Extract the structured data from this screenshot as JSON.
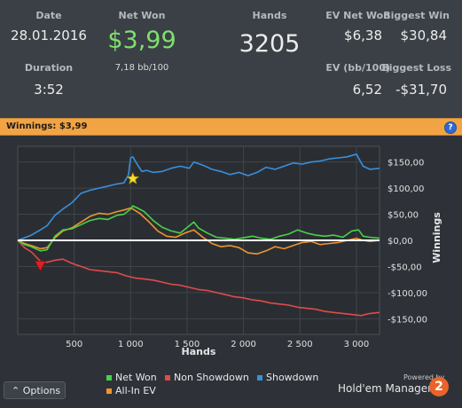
{
  "stats": {
    "date_label": "Date",
    "date_value": "28.01.2016",
    "duration_label": "Duration",
    "duration_value": "3:52",
    "net_won_label": "Net Won",
    "net_won_value": "$3,99",
    "bb100_value": "7,18 bb/100",
    "hands_label": "Hands",
    "hands_value": "3205",
    "ev_net_won_label": "EV Net Won",
    "ev_net_won_value": "$6,38",
    "biggest_win_label": "Biggest Win",
    "biggest_win_value": "$30,84",
    "ev_bb100_label": "EV (bb/100)",
    "ev_bb100_value": "6,52",
    "biggest_loss_label": "Biggest Loss",
    "biggest_loss_value": "-$31,70"
  },
  "winnings_bar": {
    "text": "Winnings: $3,99",
    "help_glyph": "?"
  },
  "options_label": "⌃ Options",
  "footer": {
    "powered_by": "Powered by",
    "brand": "Hold'em Manager",
    "logo_glyph": "2"
  },
  "colors": {
    "net_won": "#49d148",
    "non_showdown": "#e14a4a",
    "showdown": "#3a8fdb",
    "all_in_ev": "#f0952e",
    "zero_line": "#ffffff",
    "grid": "#3f454c"
  },
  "icons": {
    "help": "help-icon",
    "options_chevron": "chevron-up-icon",
    "logo": "holdem-manager-logo-icon",
    "best_marker": "star-icon",
    "worst_marker": "down-triangle-icon"
  },
  "chart_data": {
    "type": "line",
    "xlabel": "Hands",
    "ylabel": "Winnings",
    "xlim": [
      0,
      3205
    ],
    "ylim": [
      -180,
      180
    ],
    "x_ticks": [
      500,
      1000,
      1500,
      2000,
      2500,
      3000
    ],
    "x_tick_labels": [
      "500",
      "1 000",
      "1 500",
      "2 000",
      "2 500",
      "3 000"
    ],
    "y_ticks": [
      150,
      100,
      50,
      0,
      -50,
      -100,
      -150
    ],
    "y_tick_labels": [
      "$150,00",
      "$100,00",
      "$50,00",
      "$0,00",
      "-$50,00",
      "-$100,00",
      "-$150,00"
    ],
    "legend": [
      "Net Won",
      "Non Showdown",
      "Showdown",
      "All-In EV"
    ],
    "legend_position": "bottom",
    "max_marker": {
      "x": 1020,
      "y": 118
    },
    "min_marker": {
      "x": 200,
      "y": -50
    },
    "series": [
      {
        "name": "Net Won",
        "color": "#49d148",
        "points": [
          [
            0,
            0
          ],
          [
            60,
            -8
          ],
          [
            120,
            -12
          ],
          [
            200,
            -20
          ],
          [
            260,
            -18
          ],
          [
            330,
            8
          ],
          [
            400,
            20
          ],
          [
            480,
            22
          ],
          [
            560,
            30
          ],
          [
            640,
            38
          ],
          [
            720,
            42
          ],
          [
            800,
            40
          ],
          [
            880,
            48
          ],
          [
            940,
            50
          ],
          [
            1000,
            60
          ],
          [
            1020,
            66
          ],
          [
            1060,
            62
          ],
          [
            1120,
            55
          ],
          [
            1200,
            38
          ],
          [
            1280,
            25
          ],
          [
            1360,
            18
          ],
          [
            1440,
            14
          ],
          [
            1520,
            28
          ],
          [
            1560,
            35
          ],
          [
            1600,
            24
          ],
          [
            1680,
            14
          ],
          [
            1760,
            6
          ],
          [
            1840,
            4
          ],
          [
            1920,
            2
          ],
          [
            2000,
            5
          ],
          [
            2080,
            8
          ],
          [
            2160,
            4
          ],
          [
            2240,
            2
          ],
          [
            2320,
            8
          ],
          [
            2400,
            12
          ],
          [
            2480,
            20
          ],
          [
            2560,
            14
          ],
          [
            2640,
            10
          ],
          [
            2720,
            8
          ],
          [
            2800,
            10
          ],
          [
            2880,
            6
          ],
          [
            2960,
            18
          ],
          [
            3020,
            20
          ],
          [
            3060,
            8
          ],
          [
            3120,
            6
          ],
          [
            3205,
            4
          ]
        ]
      },
      {
        "name": "Non Showdown",
        "color": "#e14a4a",
        "points": [
          [
            0,
            0
          ],
          [
            60,
            -14
          ],
          [
            120,
            -22
          ],
          [
            200,
            -40
          ],
          [
            260,
            -42
          ],
          [
            330,
            -38
          ],
          [
            400,
            -36
          ],
          [
            480,
            -44
          ],
          [
            560,
            -50
          ],
          [
            640,
            -56
          ],
          [
            720,
            -58
          ],
          [
            800,
            -60
          ],
          [
            880,
            -62
          ],
          [
            960,
            -68
          ],
          [
            1040,
            -72
          ],
          [
            1120,
            -74
          ],
          [
            1200,
            -76
          ],
          [
            1280,
            -80
          ],
          [
            1360,
            -84
          ],
          [
            1440,
            -86
          ],
          [
            1520,
            -90
          ],
          [
            1600,
            -94
          ],
          [
            1680,
            -96
          ],
          [
            1760,
            -100
          ],
          [
            1840,
            -104
          ],
          [
            1920,
            -108
          ],
          [
            2000,
            -110
          ],
          [
            2080,
            -114
          ],
          [
            2160,
            -116
          ],
          [
            2240,
            -120
          ],
          [
            2320,
            -122
          ],
          [
            2400,
            -124
          ],
          [
            2480,
            -128
          ],
          [
            2560,
            -130
          ],
          [
            2640,
            -132
          ],
          [
            2720,
            -136
          ],
          [
            2800,
            -138
          ],
          [
            2880,
            -140
          ],
          [
            2960,
            -142
          ],
          [
            3040,
            -144
          ],
          [
            3120,
            -140
          ],
          [
            3205,
            -138
          ]
        ]
      },
      {
        "name": "Showdown",
        "color": "#3a8fdb",
        "points": [
          [
            0,
            0
          ],
          [
            60,
            5
          ],
          [
            120,
            10
          ],
          [
            200,
            20
          ],
          [
            260,
            28
          ],
          [
            330,
            48
          ],
          [
            400,
            60
          ],
          [
            480,
            72
          ],
          [
            560,
            90
          ],
          [
            640,
            96
          ],
          [
            720,
            100
          ],
          [
            800,
            104
          ],
          [
            880,
            108
          ],
          [
            940,
            110
          ],
          [
            980,
            125
          ],
          [
            1000,
            158
          ],
          [
            1020,
            160
          ],
          [
            1060,
            145
          ],
          [
            1100,
            132
          ],
          [
            1140,
            134
          ],
          [
            1200,
            130
          ],
          [
            1280,
            132
          ],
          [
            1360,
            138
          ],
          [
            1440,
            142
          ],
          [
            1520,
            138
          ],
          [
            1560,
            150
          ],
          [
            1640,
            144
          ],
          [
            1720,
            136
          ],
          [
            1800,
            132
          ],
          [
            1880,
            126
          ],
          [
            1960,
            130
          ],
          [
            2040,
            124
          ],
          [
            2120,
            130
          ],
          [
            2200,
            140
          ],
          [
            2280,
            136
          ],
          [
            2360,
            142
          ],
          [
            2440,
            148
          ],
          [
            2520,
            146
          ],
          [
            2600,
            150
          ],
          [
            2680,
            152
          ],
          [
            2760,
            156
          ],
          [
            2840,
            158
          ],
          [
            2920,
            160
          ],
          [
            3000,
            165
          ],
          [
            3060,
            142
          ],
          [
            3120,
            136
          ],
          [
            3205,
            138
          ]
        ]
      },
      {
        "name": "All-In EV",
        "color": "#f0952e",
        "points": [
          [
            0,
            0
          ],
          [
            60,
            -6
          ],
          [
            120,
            -10
          ],
          [
            200,
            -16
          ],
          [
            260,
            -14
          ],
          [
            330,
            5
          ],
          [
            400,
            18
          ],
          [
            480,
            24
          ],
          [
            560,
            35
          ],
          [
            640,
            46
          ],
          [
            720,
            52
          ],
          [
            800,
            50
          ],
          [
            880,
            55
          ],
          [
            940,
            58
          ],
          [
            1000,
            62
          ],
          [
            1020,
            60
          ],
          [
            1080,
            52
          ],
          [
            1160,
            36
          ],
          [
            1240,
            18
          ],
          [
            1320,
            8
          ],
          [
            1400,
            6
          ],
          [
            1480,
            14
          ],
          [
            1560,
            20
          ],
          [
            1640,
            6
          ],
          [
            1720,
            -6
          ],
          [
            1800,
            -12
          ],
          [
            1880,
            -10
          ],
          [
            1960,
            -14
          ],
          [
            2040,
            -24
          ],
          [
            2120,
            -26
          ],
          [
            2200,
            -20
          ],
          [
            2280,
            -12
          ],
          [
            2360,
            -16
          ],
          [
            2440,
            -10
          ],
          [
            2520,
            -4
          ],
          [
            2600,
            -2
          ],
          [
            2680,
            -8
          ],
          [
            2760,
            -6
          ],
          [
            2840,
            -4
          ],
          [
            2920,
            0
          ],
          [
            3000,
            4
          ],
          [
            3060,
            0
          ],
          [
            3120,
            -2
          ],
          [
            3205,
            0
          ]
        ]
      }
    ]
  }
}
